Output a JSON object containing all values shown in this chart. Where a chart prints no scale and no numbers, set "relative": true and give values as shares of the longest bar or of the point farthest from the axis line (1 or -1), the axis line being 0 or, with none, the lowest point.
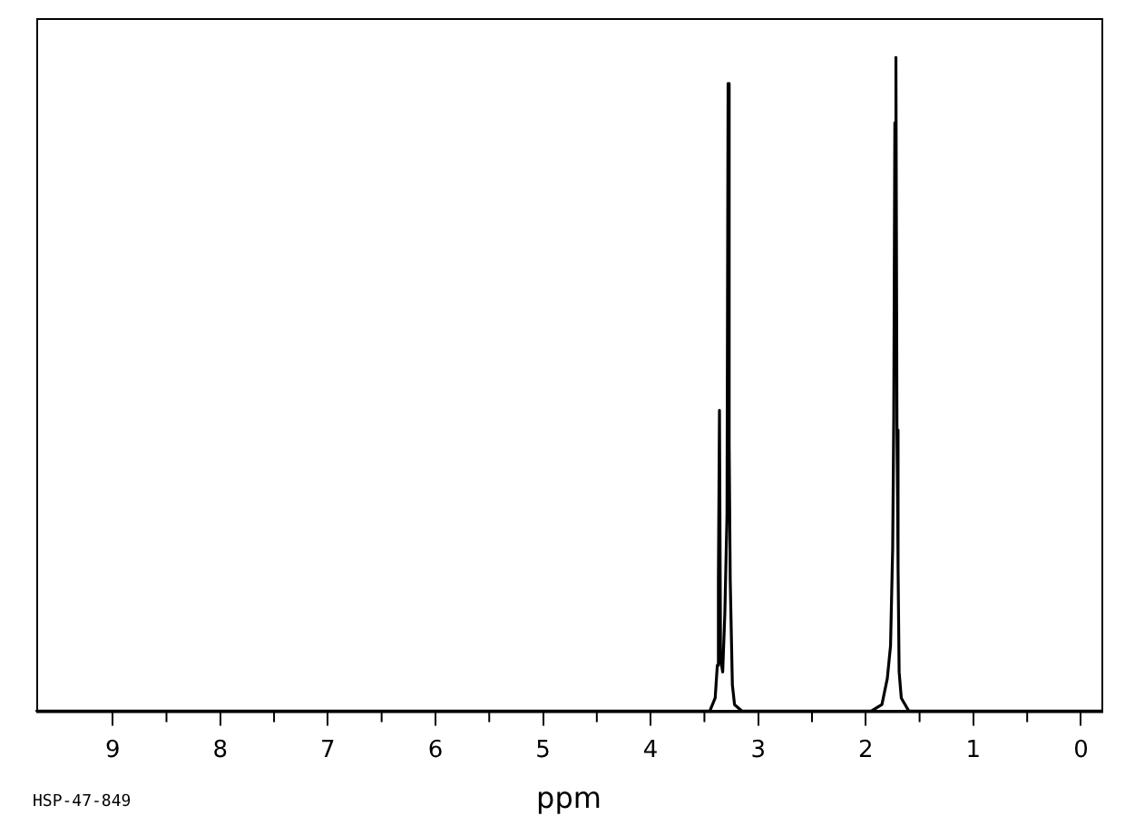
{
  "chart_data": {
    "type": "line",
    "relative": true,
    "xlabel": "ppm",
    "annotations": [
      "HSP-47-849"
    ],
    "xlim": [
      9.71,
      -0.19
    ],
    "xticks": [
      9,
      8,
      7,
      6,
      5,
      4,
      3,
      2,
      1,
      0
    ],
    "grid": false,
    "legend": false,
    "marker": "none",
    "line_style": "solid",
    "series": [
      {
        "color": "#000000",
        "x": [
          9.71,
          3.45,
          3.4,
          3.38,
          3.37,
          3.36,
          3.35,
          3.33,
          3.31,
          3.29,
          3.28,
          3.27,
          3.26,
          3.24,
          3.22,
          3.15,
          1.95,
          1.85,
          1.8,
          1.77,
          1.75,
          1.74,
          1.73,
          1.72,
          1.71,
          1.7,
          1.69,
          1.67,
          1.6,
          -0.19
        ],
        "values": [
          0,
          0,
          0.02,
          0.07,
          0.2,
          0.46,
          0.08,
          0.06,
          0.15,
          0.3,
          0.96,
          0.41,
          0.2,
          0.04,
          0.01,
          0,
          0,
          0.01,
          0.05,
          0.1,
          0.25,
          0.45,
          0.9,
          1,
          0.43,
          0.22,
          0.06,
          0.02,
          0,
          0
        ]
      }
    ]
  }
}
